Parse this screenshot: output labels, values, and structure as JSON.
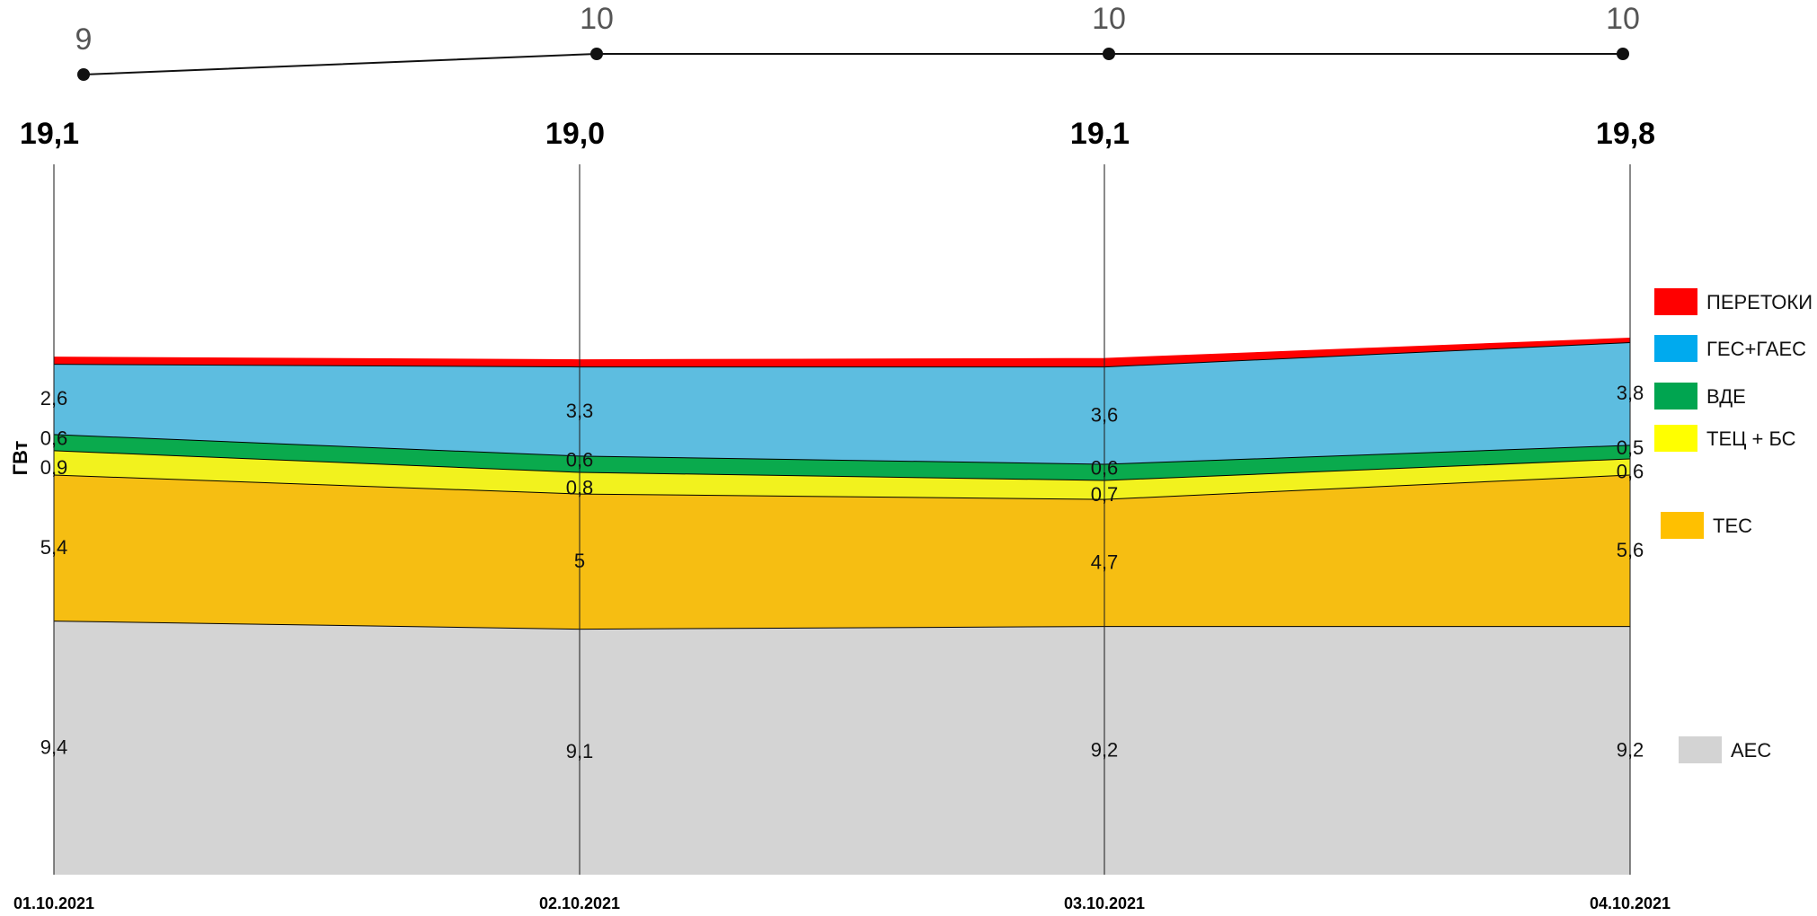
{
  "chart_data": {
    "type": "area",
    "ylabel": "ГВт",
    "categories": [
      "01.10.2021",
      "02.10.2021",
      "03.10.2021",
      "04.10.2021"
    ],
    "totals": [
      "19,1",
      "19,0",
      "19,1",
      "19,8"
    ],
    "top_line": {
      "values": [
        9,
        10,
        10,
        10
      ],
      "labels": [
        "9",
        "10",
        "10",
        "10"
      ]
    },
    "series": [
      {
        "name": "АЕС",
        "color": "#d4d4d4",
        "values": [
          9.4,
          9.1,
          9.2,
          9.2
        ],
        "labels": [
          "9,4",
          "9,1",
          "9,2",
          "9,2"
        ]
      },
      {
        "name": "ТЕС",
        "color": "#f6be12",
        "values": [
          5.4,
          5,
          4.7,
          5.6
        ],
        "labels": [
          "5,4",
          "5",
          "4,7",
          "5,6"
        ]
      },
      {
        "name": "ТЕЦ + БС",
        "color": "#f2f21e",
        "values": [
          0.9,
          0.8,
          0.7,
          0.6
        ],
        "labels": [
          "0,9",
          "0,8",
          "0,7",
          "0,6"
        ]
      },
      {
        "name": "ВДЕ",
        "color": "#0aaa4d",
        "values": [
          0.6,
          0.6,
          0.6,
          0.5
        ],
        "labels": [
          "0,6",
          "0,6",
          "0,6",
          "0,5"
        ]
      },
      {
        "name": "ГЕС+ГАЕС",
        "color": "#5dbde0",
        "values": [
          2.6,
          3.3,
          3.6,
          3.8
        ],
        "labels": [
          "2,6",
          "3,3",
          "3,6",
          "3,8"
        ]
      },
      {
        "name": "ПЕРЕТОКИ",
        "color": "#ff0000",
        "values": [
          0.2,
          0.2,
          0.25,
          0.1
        ],
        "labels": []
      }
    ],
    "legend": [
      {
        "name": "ПЕРЕТОКИ",
        "color": "#ff0000"
      },
      {
        "name": "ГЕС+ГАЕС",
        "color": "#00aaee"
      },
      {
        "name": "ВДЕ",
        "color": "#00a550"
      },
      {
        "name": "ТЕЦ + БС",
        "color": "#ffff00"
      },
      {
        "name": "ТЕС",
        "color": "#ffc000"
      },
      {
        "name": "АЕС",
        "color": "#d3d3d3"
      }
    ],
    "ylim": [
      0,
      24
    ],
    "grid": false,
    "legend_position": "right"
  }
}
